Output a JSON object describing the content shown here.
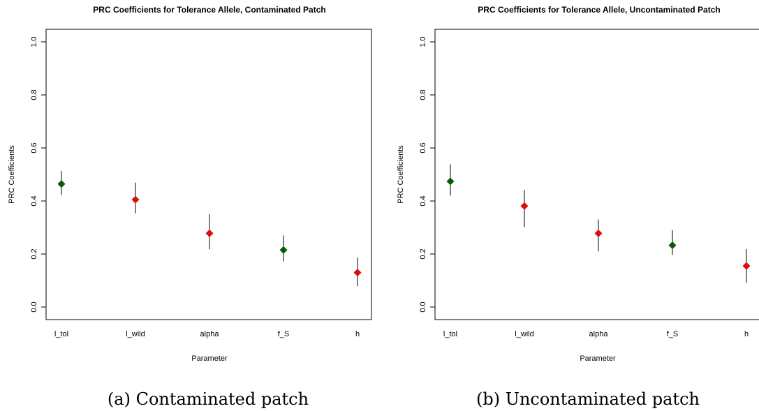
{
  "colors": {
    "tol_marker": "#0a5a0a",
    "wild_marker": "#d90f0f",
    "axis": "#000000",
    "errorbar": "#000000"
  },
  "chart_data": [
    {
      "type": "scatter",
      "title": "PRC Coefficients for Tolerance Allele, Contaminated Patch",
      "xlabel": "Parameter",
      "ylabel": "PRC Coefficients",
      "ylim": [
        0,
        1
      ],
      "y_ticks": [
        "0.0",
        "0.2",
        "0.4",
        "0.6",
        "0.8",
        "1.0"
      ],
      "categories": [
        "l_tol",
        "l_wild",
        "alpha",
        "f_S",
        "h"
      ],
      "values": [
        0.464,
        0.405,
        0.278,
        0.215,
        0.13
      ],
      "lower": [
        0.423,
        0.353,
        0.218,
        0.172,
        0.078
      ],
      "upper": [
        0.513,
        0.469,
        0.35,
        0.27,
        0.187
      ],
      "point_colors": [
        "#0a5a0a",
        "#d90f0f",
        "#d90f0f",
        "#0a5a0a",
        "#d90f0f"
      ],
      "grid": false,
      "legend": "none",
      "caption": "(a) Contaminated patch"
    },
    {
      "type": "scatter",
      "title": "PRC Coefficients for Tolerance Allele, Uncontaminated Patch",
      "xlabel": "Parameter",
      "ylabel": "PRC Coefficients",
      "ylim": [
        0,
        1
      ],
      "y_ticks": [
        "0.0",
        "0.2",
        "0.4",
        "0.6",
        "0.8",
        "1.0"
      ],
      "categories": [
        "l_tol",
        "l_wild",
        "alpha",
        "f_S",
        "h"
      ],
      "values": [
        0.474,
        0.381,
        0.278,
        0.233,
        0.155
      ],
      "lower": [
        0.42,
        0.302,
        0.21,
        0.197,
        0.092
      ],
      "upper": [
        0.538,
        0.441,
        0.33,
        0.29,
        0.218
      ],
      "point_colors": [
        "#0a5a0a",
        "#d90f0f",
        "#d90f0f",
        "#0a5a0a",
        "#d90f0f"
      ],
      "grid": false,
      "legend": "none",
      "caption": "(b) Uncontaminated patch"
    }
  ]
}
